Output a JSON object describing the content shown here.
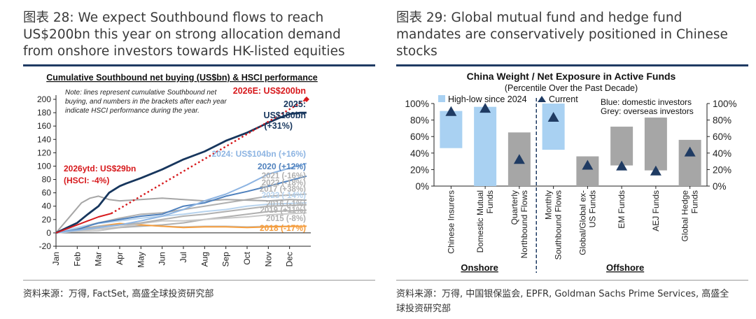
{
  "left_panel": {
    "title": "图表 28: We expect Southbound flows to reach US$200bn this year on strong allocation demand from onshore investors towards HK-listed equities",
    "source": "资料来源：万得, FactSet, 高盛全球投资研究部"
  },
  "right_panel": {
    "title": "图表 29: Global mutual fund and hedge fund mandates are conservatively positioned in Chinese stocks",
    "source_line1": "资料来源：万得, 中国银保监会, EPFR, Goldman Sachs Prime Services, 高盛全",
    "source_line2": "球投资研究部"
  },
  "colors": {
    "navy": "#17365d",
    "red": "#d7191c",
    "blue_mid": "#4f81bd",
    "blue_light": "#8db4e2",
    "blue_pale": "#b7d3ee",
    "grey": "#a6a6a6",
    "grey_light": "#c8c8c8",
    "orange": "#f59d3d",
    "bar_blue": "#a9d1f2",
    "bar_grey": "#a6a6a6",
    "marker": "#1f3b63"
  },
  "chart_data": [
    {
      "type": "line",
      "title": "Cumulative Southbound net buying (US$bn) & HSCI performance",
      "note_lines": [
        "Note: lines represent cumulative Southbound net",
        "buying, and numbers in the brackets after each year",
        "indicate HSCI performance during the year."
      ],
      "ylim": [
        -20,
        200
      ],
      "yticks": [
        "-20",
        "0",
        "20",
        "40",
        "60",
        "80",
        "100",
        "120",
        "140",
        "160",
        "180",
        "200"
      ],
      "xlim": [
        0,
        12
      ],
      "xticks": [
        "Jan",
        "Feb",
        "Mar",
        "Apr",
        "May",
        "Jun",
        "Jul",
        "Aug",
        "Sep",
        "Oct",
        "Nov",
        "Dec"
      ],
      "series": [
        {
          "name": "2015",
          "color": "#c8c8c8",
          "x": [
            0,
            1,
            2,
            3,
            4,
            5,
            6,
            7,
            8,
            9,
            10,
            11.8
          ],
          "y": [
            0,
            2,
            3,
            8,
            12,
            10,
            9,
            10,
            10,
            9,
            10,
            10
          ]
        },
        {
          "name": "2016",
          "color": "#b0b0b0",
          "x": [
            0,
            1,
            2,
            3,
            4,
            5,
            6,
            7,
            8,
            9,
            10,
            11.8
          ],
          "y": [
            0,
            4,
            6,
            8,
            10,
            12,
            15,
            20,
            24,
            28,
            32,
            34
          ]
        },
        {
          "name": "2017",
          "color": "#b0b0b0",
          "x": [
            0,
            1,
            2,
            3,
            4,
            5,
            6,
            7,
            8,
            9,
            10,
            11.8
          ],
          "y": [
            0,
            8,
            15,
            22,
            28,
            30,
            35,
            40,
            45,
            50,
            55,
            58
          ]
        },
        {
          "name": "2018",
          "color": "#f59d3d",
          "x": [
            0,
            1,
            2,
            3,
            4,
            5,
            6,
            7,
            8,
            9,
            10,
            11.8
          ],
          "y": [
            0,
            6,
            10,
            14,
            12,
            10,
            8,
            9,
            9,
            8,
            9,
            10
          ]
        },
        {
          "name": "2019",
          "color": "#c8c8c8",
          "x": [
            0,
            1,
            2,
            3,
            4,
            5,
            6,
            7,
            8,
            9,
            10,
            11.8
          ],
          "y": [
            0,
            3,
            6,
            9,
            14,
            18,
            18,
            20,
            22,
            24,
            27,
            30
          ]
        },
        {
          "name": "2021",
          "color": "#a6a6a6",
          "x": [
            0,
            0.8,
            1.2,
            1.6,
            2,
            2.5,
            3,
            4,
            5,
            6,
            7,
            8,
            9,
            10,
            11,
            11.8
          ],
          "y": [
            0,
            30,
            45,
            52,
            55,
            50,
            48,
            50,
            52,
            50,
            48,
            50,
            49,
            48,
            50,
            49
          ]
        },
        {
          "name": "2022",
          "color": "#b0b0b0",
          "x": [
            0,
            1,
            2,
            3,
            4,
            5,
            6,
            7,
            8,
            9,
            10,
            11.8
          ],
          "y": [
            0,
            6,
            10,
            12,
            15,
            20,
            25,
            28,
            32,
            36,
            40,
            42
          ]
        },
        {
          "name": "2023",
          "color": "#b7d3ee",
          "x": [
            0,
            1,
            2,
            3,
            4,
            5,
            6,
            7,
            8,
            9,
            10,
            11.8
          ],
          "y": [
            0,
            8,
            14,
            18,
            22,
            25,
            28,
            32,
            35,
            40,
            43,
            45
          ]
        },
        {
          "name": "2020",
          "color": "#4f81bd",
          "x": [
            0,
            1,
            2,
            3,
            4,
            5,
            6,
            7,
            8,
            9,
            10,
            11.8
          ],
          "y": [
            0,
            5,
            15,
            20,
            25,
            28,
            40,
            45,
            55,
            62,
            70,
            85
          ]
        },
        {
          "name": "2024",
          "color": "#8db4e2",
          "x": [
            0,
            1,
            2,
            3,
            4,
            5,
            6,
            7,
            8,
            9,
            10,
            11.8
          ],
          "y": [
            0,
            4,
            8,
            12,
            18,
            25,
            35,
            48,
            58,
            72,
            88,
            104
          ]
        },
        {
          "name": "2025",
          "color": "#17365d",
          "x": [
            0,
            1,
            1.5,
            2,
            2.5,
            3,
            3.3,
            4,
            5,
            6,
            7,
            8,
            9,
            10,
            10.5,
            11,
            11.5,
            11.8
          ],
          "y": [
            0,
            15,
            28,
            40,
            60,
            70,
            74,
            82,
            95,
            110,
            122,
            138,
            150,
            165,
            172,
            178,
            180,
            180
          ]
        },
        {
          "name": "2026ytd",
          "color": "#d7191c",
          "x": [
            0,
            0.5,
            1,
            1.5,
            2,
            2.6
          ],
          "y": [
            0,
            6,
            12,
            18,
            24,
            29
          ]
        },
        {
          "name": "2026E",
          "color": "#d7191c",
          "dashed": true,
          "x": [
            2.6,
            11.8
          ],
          "y": [
            29,
            200
          ]
        }
      ],
      "annotations": [
        {
          "text": "2026E: US$200bn",
          "color": "#d7191c"
        },
        {
          "text": "2025:",
          "color": "#17365d"
        },
        {
          "text": "US$180bn",
          "color": "#17365d"
        },
        {
          "text": "(+31%)",
          "color": "#17365d"
        },
        {
          "text": "2024: US$104bn (+16%)",
          "color": "#8db4e2"
        },
        {
          "text": "2020 (+12%)",
          "color": "#4f81bd"
        },
        {
          "text": "2021 (-16%)",
          "color": "#b0b0b0"
        },
        {
          "text": "2022 (-18%)",
          "color": "#b0b0b0"
        },
        {
          "text": "2017 (+38%)",
          "color": "#b0b0b0"
        },
        {
          "text": "2023 (-14%)",
          "color": "#b7d3ee"
        },
        {
          "text": "2016 (-1%)",
          "color": "#b0b0b0"
        },
        {
          "text": "2019 (+11%)",
          "color": "#b0b0b0"
        },
        {
          "text": "2015 (-8%)",
          "color": "#b0b0b0"
        },
        {
          "text": "2018 (-17%)",
          "color": "#f59d3d"
        },
        {
          "text": "2026ytd: US$29bn",
          "color": "#d7191c"
        },
        {
          "text": "(HSCI: -4%)",
          "color": "#d7191c"
        }
      ]
    },
    {
      "type": "bar",
      "title": "China Weight / Net Exposure in Active Funds",
      "subtitle": "(Percentile Over the Past Decade)",
      "ylim": [
        0,
        100
      ],
      "yticks": [
        "0%",
        "20%",
        "40%",
        "60%",
        "80%",
        "100%"
      ],
      "legend": [
        "High-low since 2024",
        "Current"
      ],
      "legend_note": [
        "Blue: domestic investors",
        "Grey: overseas investors"
      ],
      "groups": [
        "Onshore",
        "Offshore"
      ],
      "categories": [
        {
          "label": [
            "Chinese Insurers"
          ],
          "low": 46,
          "high": 91,
          "current": 90,
          "color": "#a9d1f2",
          "group": "Onshore"
        },
        {
          "label": [
            "Domestic Mutual",
            "Funds"
          ],
          "low": 0,
          "high": 96,
          "current": 94,
          "color": "#a9d1f2",
          "group": "Onshore"
        },
        {
          "label": [
            "Quarterly",
            "Northbound Flows"
          ],
          "low": 0,
          "high": 65,
          "current": 32,
          "color": "#a6a6a6",
          "group": "Onshore"
        },
        {
          "label": [
            "Monthly",
            "Southbound Flows"
          ],
          "low": 44,
          "high": 100,
          "current": 83,
          "color": "#a9d1f2",
          "group": "Offshore"
        },
        {
          "label": [
            "Global/Global ex-",
            "US Funds"
          ],
          "low": 0,
          "high": 36,
          "current": 25,
          "color": "#a6a6a6",
          "group": "Offshore"
        },
        {
          "label": [
            "EM Funds"
          ],
          "low": 25,
          "high": 72,
          "current": 24,
          "color": "#a6a6a6",
          "group": "Offshore"
        },
        {
          "label": [
            "AEJ Funds"
          ],
          "low": 19,
          "high": 83,
          "current": 18,
          "color": "#a6a6a6",
          "group": "Offshore"
        },
        {
          "label": [
            "Global Hedge",
            "Funds"
          ],
          "low": 0,
          "high": 56,
          "current": 41,
          "color": "#a6a6a6",
          "group": "Offshore"
        }
      ]
    }
  ]
}
